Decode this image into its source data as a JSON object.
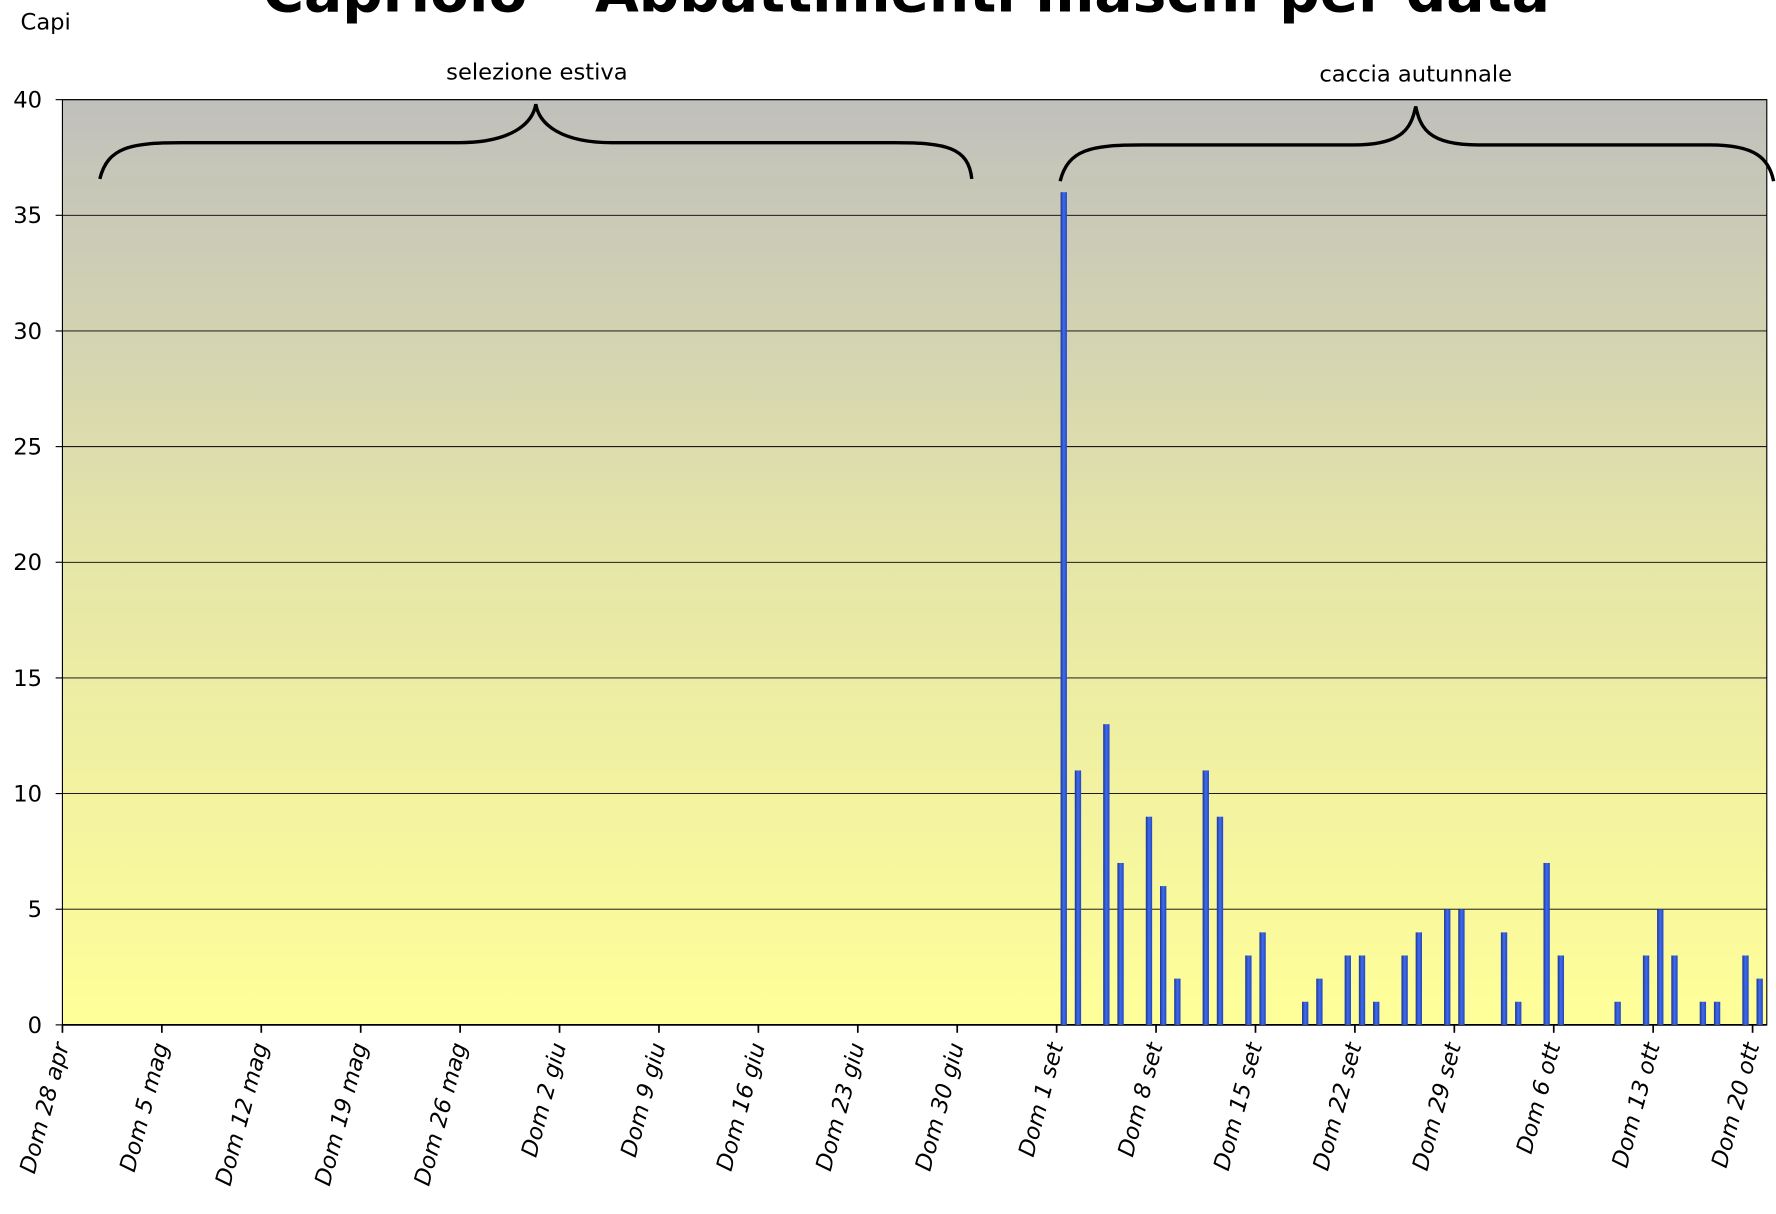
{
  "chart_data": {
    "type": "bar",
    "title": "Capriolo – Abbattimenti maschi per data",
    "y_label": "Capi",
    "annotations": [
      "selezione estiva",
      "caccia autunnale"
    ],
    "color": "#2f55d4",
    "ylim": [
      0,
      40
    ],
    "yticks": [
      0,
      5,
      10,
      15,
      20,
      25,
      30,
      35,
      40
    ],
    "grid": true,
    "categories": [
      "Dom 28 apr",
      null,
      null,
      null,
      null,
      null,
      null,
      "Dom 5 mag",
      null,
      null,
      null,
      null,
      null,
      null,
      "Dom 12 mag",
      null,
      null,
      null,
      null,
      null,
      null,
      "Dom 19 mag",
      null,
      null,
      null,
      null,
      null,
      null,
      "Dom 26 mag",
      null,
      null,
      null,
      null,
      null,
      null,
      "Dom 2 giu",
      null,
      null,
      null,
      null,
      null,
      null,
      "Dom 9 giu",
      null,
      null,
      null,
      null,
      null,
      null,
      "Dom 16 giu",
      null,
      null,
      null,
      null,
      null,
      null,
      "Dom 23 giu",
      null,
      null,
      null,
      null,
      null,
      null,
      "Dom 30 giu",
      null,
      null,
      null,
      null,
      null,
      null,
      "Dom 1 set",
      null,
      null,
      null,
      null,
      null,
      null,
      "Dom 8 set",
      null,
      null,
      null,
      null,
      null,
      null,
      "Dom 15 set",
      null,
      null,
      null,
      null,
      null,
      null,
      "Dom 22 set",
      null,
      null,
      null,
      null,
      null,
      null,
      "Dom 29 set",
      null,
      null,
      null,
      null,
      null,
      null,
      "Dom 6 ott",
      null,
      null,
      null,
      null,
      null,
      null,
      "Dom 13 ott",
      null,
      null,
      null,
      null,
      null,
      null,
      "Dom 20 ott"
    ],
    "values": [
      null,
      null,
      null,
      null,
      null,
      null,
      null,
      null,
      null,
      null,
      null,
      null,
      null,
      null,
      null,
      null,
      null,
      null,
      null,
      null,
      null,
      null,
      null,
      null,
      null,
      null,
      null,
      null,
      null,
      null,
      null,
      null,
      null,
      null,
      null,
      null,
      null,
      null,
      null,
      null,
      null,
      null,
      null,
      null,
      null,
      null,
      null,
      null,
      null,
      null,
      null,
      null,
      null,
      null,
      null,
      null,
      null,
      null,
      null,
      null,
      null,
      null,
      null,
      null,
      null,
      null,
      null,
      null,
      null,
      null,
      36,
      11,
      null,
      13,
      7,
      null,
      9,
      6,
      2,
      null,
      11,
      9,
      null,
      3,
      4,
      null,
      null,
      1,
      2,
      null,
      3,
      3,
      1,
      null,
      3,
      4,
      null,
      5,
      5,
      null,
      null,
      4,
      1,
      null,
      7,
      3,
      null,
      null,
      null,
      1,
      null,
      3,
      5,
      3,
      null,
      1,
      1,
      null,
      3,
      2
    ]
  }
}
